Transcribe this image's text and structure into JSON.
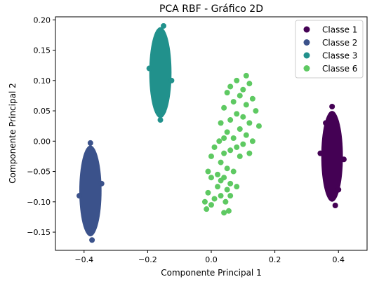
{
  "chart_data": {
    "type": "scatter",
    "title": "PCA RBF - Gráfico 2D",
    "xlabel": "Componente Principal 1",
    "ylabel": "Componente Principal 2",
    "xlim": [
      -0.49,
      0.49
    ],
    "ylim": [
      -0.18,
      0.205
    ],
    "x_ticks": [
      -0.4,
      -0.2,
      0.0,
      0.2,
      0.4
    ],
    "x_tick_labels": [
      "−0.4",
      "−0.2",
      "0.0",
      "0.2",
      "0.4"
    ],
    "y_ticks": [
      -0.15,
      -0.1,
      -0.05,
      0.0,
      0.05,
      0.1,
      0.15,
      0.2
    ],
    "y_tick_labels": [
      "−0.15",
      "−0.10",
      "−0.05",
      "0.00",
      "0.05",
      "0.10",
      "0.15",
      "0.20"
    ],
    "grid": false,
    "legend_position": "top-right",
    "series": [
      {
        "name": "Classe 1",
        "color": "#440154",
        "center": [
          0.38,
          -0.025
        ],
        "spread": [
          0.034,
          0.075
        ],
        "points": [
          [
            0.38,
            0.057
          ],
          [
            0.39,
            -0.106
          ],
          [
            0.343,
            -0.02
          ],
          [
            0.417,
            -0.03
          ],
          [
            0.36,
            0.03
          ],
          [
            0.4,
            -0.08
          ]
        ]
      },
      {
        "name": "Classe 2",
        "color": "#3b528b",
        "center": [
          -0.38,
          -0.082
        ],
        "spread": [
          0.035,
          0.075
        ],
        "points": [
          [
            -0.38,
            -0.003
          ],
          [
            -0.375,
            -0.163
          ],
          [
            -0.415,
            -0.09
          ],
          [
            -0.345,
            -0.07
          ],
          [
            -0.39,
            -0.03
          ],
          [
            -0.37,
            -0.14
          ]
        ]
      },
      {
        "name": "Classe 3",
        "color": "#21918c",
        "center": [
          -0.16,
          0.113
        ],
        "spread": [
          0.035,
          0.075
        ],
        "points": [
          [
            -0.15,
            0.19
          ],
          [
            -0.16,
            0.035
          ],
          [
            -0.195,
            0.12
          ],
          [
            -0.125,
            0.1
          ],
          [
            -0.17,
            0.17
          ],
          [
            -0.15,
            0.05
          ]
        ]
      },
      {
        "name": "Classe 6",
        "color": "#5ec962",
        "points": [
          [
            0.11,
            0.108
          ],
          [
            0.08,
            0.1
          ],
          [
            0.12,
            0.095
          ],
          [
            0.06,
            0.09
          ],
          [
            0.1,
            0.085
          ],
          [
            0.05,
            0.08
          ],
          [
            0.09,
            0.075
          ],
          [
            0.13,
            0.07
          ],
          [
            0.07,
            0.065
          ],
          [
            0.11,
            0.06
          ],
          [
            0.04,
            0.055
          ],
          [
            0.14,
            0.05
          ],
          [
            0.08,
            0.045
          ],
          [
            0.1,
            0.04
          ],
          [
            0.06,
            0.035
          ],
          [
            0.12,
            0.03
          ],
          [
            0.03,
            0.03
          ],
          [
            0.15,
            0.025
          ],
          [
            0.09,
            0.02
          ],
          [
            0.05,
            0.015
          ],
          [
            0.11,
            0.01
          ],
          [
            0.07,
            0.005
          ],
          [
            0.13,
            0.0
          ],
          [
            0.04,
            0.005
          ],
          [
            0.1,
            -0.005
          ],
          [
            0.08,
            -0.01
          ],
          [
            0.06,
            -0.015
          ],
          [
            0.12,
            -0.02
          ],
          [
            0.09,
            -0.025
          ],
          [
            0.025,
            0.0
          ],
          [
            0.01,
            -0.01
          ],
          [
            0.04,
            -0.02
          ],
          [
            0.0,
            -0.025
          ],
          [
            0.03,
            -0.035
          ],
          [
            -0.01,
            -0.05
          ],
          [
            0.05,
            -0.045
          ],
          [
            0.02,
            -0.055
          ],
          [
            0.07,
            -0.05
          ],
          [
            0.04,
            -0.06
          ],
          [
            0.0,
            -0.06
          ],
          [
            0.03,
            -0.065
          ],
          [
            0.06,
            -0.07
          ],
          [
            0.02,
            -0.075
          ],
          [
            0.05,
            -0.08
          ],
          [
            -0.01,
            -0.085
          ],
          [
            0.03,
            -0.09
          ],
          [
            0.08,
            -0.075
          ],
          [
            0.01,
            -0.095
          ],
          [
            0.045,
            -0.1
          ],
          [
            -0.02,
            -0.1
          ],
          [
            0.0,
            -0.105
          ],
          [
            -0.015,
            -0.112
          ],
          [
            0.04,
            -0.118
          ],
          [
            0.055,
            -0.115
          ],
          [
            0.06,
            -0.09
          ]
        ]
      }
    ]
  }
}
